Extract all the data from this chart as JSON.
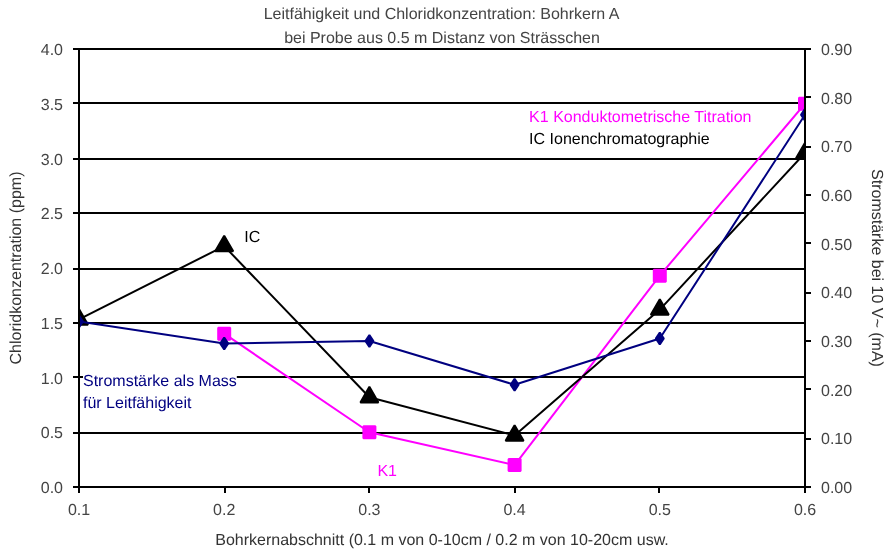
{
  "chart_data": {
    "type": "line",
    "title": "Leitfähigkeit und Chloridkonzentration: Bohrkern A",
    "subtitle": "bei Probe aus 0.5 m Distanz von Strässchen",
    "xlabel": "Bohrkernabschnitt (0.1 m von 0-10cm / 0.2 m von 10-20cm usw.",
    "ylabel": "Chloridkonzentration (ppm)",
    "y2label": "Stromstärke bei 10 V~ (mA)",
    "series": [
      {
        "name": "K1",
        "color": "#ff00ff",
        "marker": "square",
        "x": [
          0.2,
          0.3,
          0.4,
          0.5,
          0.6
        ],
        "values": [
          1.4,
          0.5,
          0.2,
          1.93,
          3.5
        ]
      },
      {
        "name": "IC",
        "color": "#000000",
        "marker": "triangle",
        "x": [
          0.1,
          0.2,
          0.3,
          0.4,
          0.5,
          0.6
        ],
        "values": [
          1.53,
          2.2,
          0.82,
          0.47,
          1.62,
          3.05
        ]
      },
      {
        "name": "Stromstärke als Mass für Leitfähigkeit",
        "color": "#000080",
        "marker": "diamond",
        "axis": "y2",
        "x": [
          0.1,
          0.2,
          0.3,
          0.4,
          0.5,
          0.6
        ],
        "values": [
          0.34,
          0.295,
          0.3,
          0.21,
          0.305,
          0.765
        ]
      }
    ],
    "annotations": [
      "K1   Konduktometrische Titration",
      "IC    Ionenchromatographie"
    ],
    "xlim": [
      0.1,
      0.6
    ],
    "xticks": [
      0.1,
      0.2,
      0.3,
      0.4,
      0.5,
      0.6
    ],
    "ylim": [
      0,
      4
    ],
    "yticks": [
      {
        "value": 0,
        "label": "0.0"
      },
      0.5,
      {
        "value": 1,
        "label": "1.0"
      },
      1.5,
      {
        "value": 2,
        "label": "2.0"
      },
      2.5,
      {
        "value": 3,
        "label": "3.0"
      },
      3.5,
      {
        "value": 4,
        "label": "4.0"
      }
    ],
    "y2lim": [
      0,
      0.9
    ],
    "y2ticks": [
      {
        "value": 0,
        "label": "0.00"
      },
      {
        "value": 0.1,
        "label": "0.10"
      },
      {
        "value": 0.2,
        "label": "0.20"
      },
      {
        "value": 0.3,
        "label": "0.30"
      },
      {
        "value": 0.4,
        "label": "0.40"
      },
      {
        "value": 0.5,
        "label": "0.50"
      },
      {
        "value": 0.6,
        "label": "0.60"
      },
      {
        "value": 0.7,
        "label": "0.70"
      },
      {
        "value": 0.8,
        "label": "0.80"
      },
      {
        "value": 0.9,
        "label": "0.90"
      }
    ],
    "grid": "y",
    "line_style": "solid"
  }
}
